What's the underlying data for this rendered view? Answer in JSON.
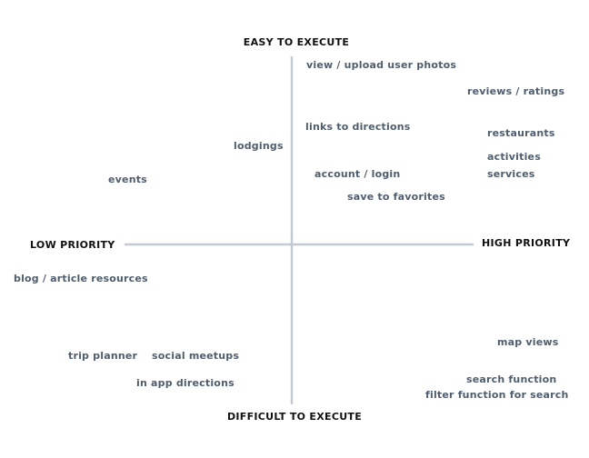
{
  "axes": {
    "top": "EASY TO EXECUTE",
    "bottom": "DIFFICULT TO EXECUTE",
    "left": "LOW PRIORITY",
    "right": "HIGH PRIORITY"
  },
  "items": [
    "view / upload user photos",
    "reviews / ratings",
    "links to directions",
    "restaurants",
    "lodgings",
    "activities",
    "account / login",
    "services",
    "events",
    "save to favorites",
    "blog / article resources",
    "map views",
    "trip planner",
    "social meetups",
    "in app directions",
    "search function",
    "filter function for search"
  ]
}
